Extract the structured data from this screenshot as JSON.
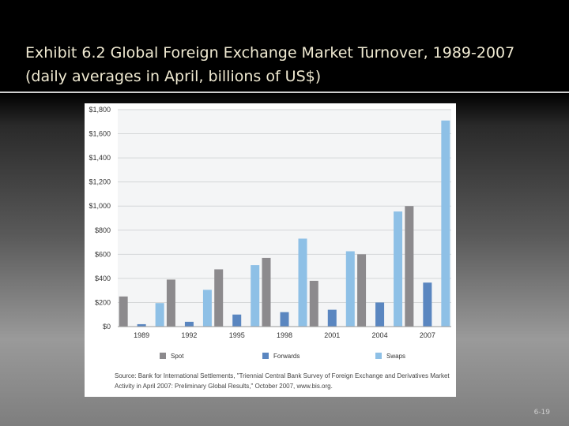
{
  "slide": {
    "title": "Exhibit 6.2  Global Foreign Exchange Market Turnover, 1989-2007 (daily averages in April, billions of US$)",
    "page_number": "6-19",
    "source": "Source: Bank for International Settlements, \"Triennial Central Bank Survey of Foreign Exchange and Derivatives Market Activity in April 2007: Preliminary Global Results,\" October 2007, www.bis.org."
  },
  "chart_data": {
    "type": "bar",
    "categories": [
      "1989",
      "1992",
      "1995",
      "1998",
      "2001",
      "2004",
      "2007"
    ],
    "series": [
      {
        "name": "Spot",
        "values": [
          250,
          390,
          475,
          570,
          380,
          600,
          1000
        ]
      },
      {
        "name": "Forwards",
        "values": [
          20,
          40,
          100,
          120,
          140,
          200,
          365
        ]
      },
      {
        "name": "Swaps",
        "values": [
          195,
          305,
          510,
          730,
          625,
          955,
          1710
        ]
      }
    ],
    "ylim": [
      0,
      1800
    ],
    "yticks": [
      "$0",
      "$200",
      "$400",
      "$600",
      "$800",
      "$1,000",
      "$1,200",
      "$1,400",
      "$1,600",
      "$1,800"
    ],
    "grid": true,
    "legend_position": "bottom",
    "colors": {
      "Spot": "#8c8a8d",
      "Forwards": "#5a86c0",
      "Swaps": "#8ec0e6"
    }
  }
}
